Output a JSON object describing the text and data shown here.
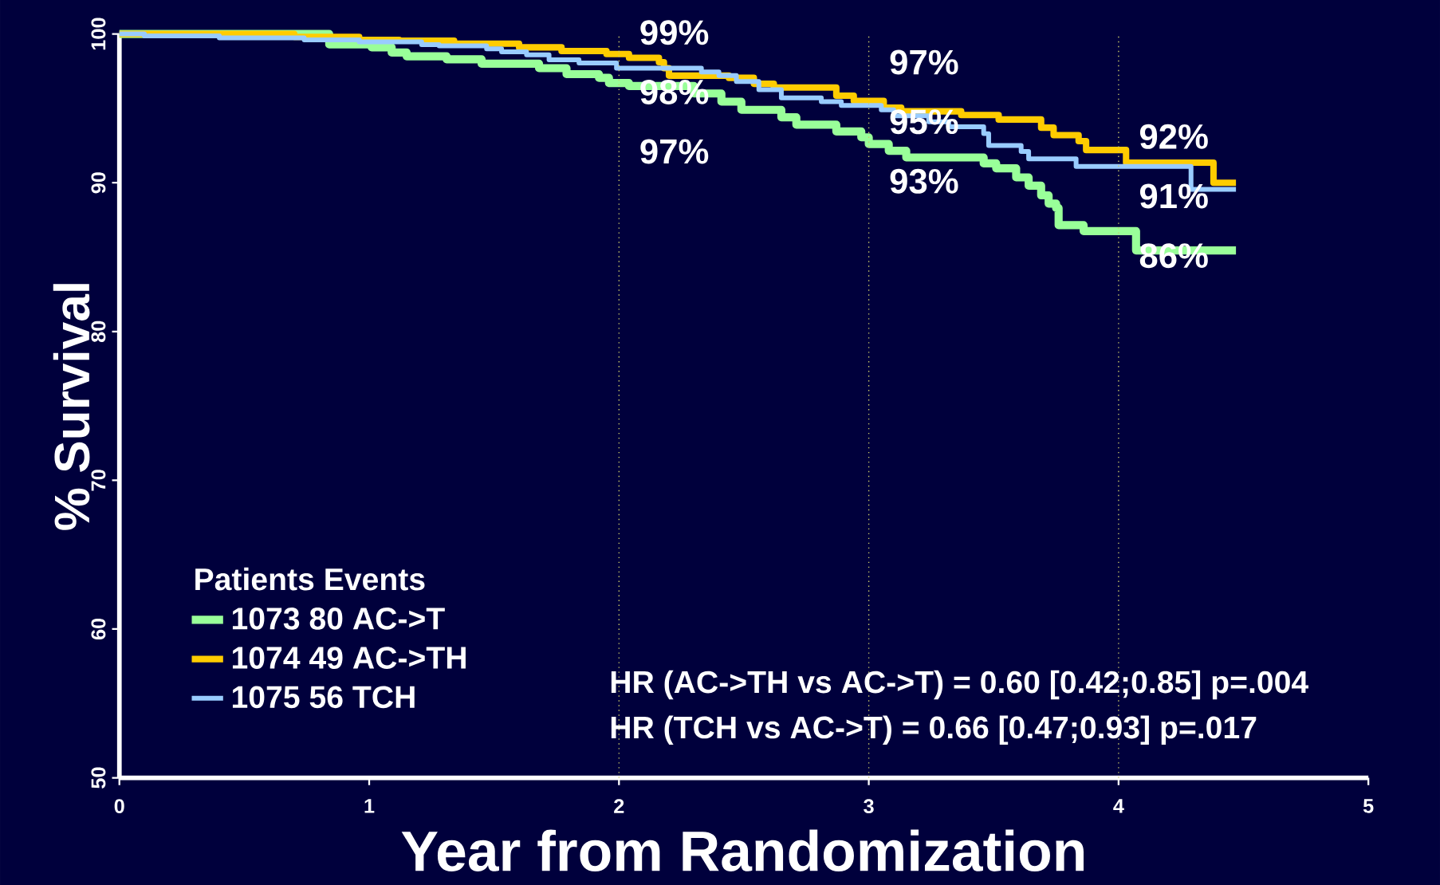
{
  "chart_data": {
    "type": "step",
    "xlabel": "Year from Randomization",
    "ylabel": "% Survival",
    "legend_title": "Patients Events",
    "legend": "bottom left",
    "xlim": [
      0,
      5
    ],
    "ylim": [
      50,
      100
    ],
    "xticks": [
      0,
      1,
      2,
      3,
      4,
      5
    ],
    "yticks": [
      50,
      60,
      70,
      80,
      90,
      100
    ],
    "series": [
      {
        "name": "1073 80 AC->T",
        "color": "#99ff99",
        "x": [
          0,
          0.84,
          1.01,
          1.09,
          1.15,
          1.31,
          1.45,
          1.68,
          1.79,
          1.92,
          1.96,
          2.04,
          2.3,
          2.41,
          2.49,
          2.65,
          2.71,
          2.87,
          2.97,
          3.0,
          3.08,
          3.15,
          3.46,
          3.51,
          3.59,
          3.64,
          3.69,
          3.72,
          3.75,
          3.76,
          3.86,
          4.07,
          4.47
        ],
        "values": [
          100,
          99.3,
          99.1,
          98.75,
          98.5,
          98.3,
          98.0,
          97.7,
          97.3,
          97.05,
          96.7,
          96.5,
          96.0,
          95.45,
          94.9,
          94.4,
          93.9,
          93.45,
          93.05,
          92.6,
          92.15,
          91.7,
          91.3,
          90.97,
          90.36,
          89.8,
          89.15,
          88.6,
          88.3,
          87.15,
          86.75,
          85.45,
          85.45
        ]
      },
      {
        "name": "1074 49 AC->TH",
        "color": "#ffcc00",
        "x": [
          0,
          0.7,
          0.96,
          1.12,
          1.34,
          1.6,
          1.77,
          1.95,
          2.04,
          2.16,
          2.18,
          2.2,
          2.44,
          2.54,
          2.62,
          2.87,
          2.94,
          3.06,
          3.13,
          3.37,
          3.52,
          3.69,
          3.74,
          3.84,
          3.87,
          4.03,
          4.38,
          4.47
        ],
        "values": [
          100,
          99.8,
          99.6,
          99.55,
          99.35,
          99.1,
          98.85,
          98.65,
          98.4,
          98.1,
          97.7,
          97.2,
          97.05,
          96.65,
          96.4,
          95.85,
          95.5,
          95.05,
          94.8,
          94.55,
          94.25,
          93.7,
          93.2,
          92.8,
          92.2,
          91.35,
          90.0,
          90.0
        ]
      },
      {
        "name": "1075 56 TCH",
        "color": "#99ccff",
        "x": [
          0,
          0.1,
          0.4,
          0.74,
          0.96,
          1.21,
          1.28,
          1.47,
          1.53,
          1.63,
          1.72,
          1.84,
          1.99,
          2.33,
          2.4,
          2.47,
          2.56,
          2.65,
          2.81,
          2.89,
          3.05,
          3.1,
          3.24,
          3.32,
          3.46,
          3.48,
          3.61,
          3.64,
          3.83,
          4.29,
          4.47
        ],
        "values": [
          100,
          99.87,
          99.74,
          99.6,
          99.47,
          99.28,
          99.2,
          99.0,
          98.8,
          98.6,
          98.26,
          98.05,
          97.7,
          97.45,
          97.2,
          96.8,
          96.25,
          95.7,
          95.45,
          95.2,
          94.9,
          94.5,
          94.1,
          93.76,
          93.3,
          92.5,
          92.1,
          91.6,
          91.1,
          89.55,
          89.55
        ]
      }
    ],
    "ref_lines": [
      {
        "axis": "x",
        "value": 2,
        "color": "#cccc66",
        "line_style": "dotted"
      },
      {
        "axis": "x",
        "value": 3,
        "color": "#cccc66",
        "line_style": "dotted"
      },
      {
        "axis": "x",
        "value": 4,
        "color": "#cccc66",
        "line_style": "dotted"
      }
    ],
    "annotations": [
      {
        "text": "99%",
        "x": 2,
        "y": 99
      },
      {
        "text": "98%",
        "x": 2,
        "y": 98
      },
      {
        "text": "97%",
        "x": 2,
        "y": 97
      },
      {
        "text": "97%",
        "x": 3,
        "y": 97
      },
      {
        "text": "95%",
        "x": 3,
        "y": 95
      },
      {
        "text": "93%",
        "x": 3,
        "y": 93
      },
      {
        "text": "92%",
        "x": 4,
        "y": 92
      },
      {
        "text": "91%",
        "x": 4,
        "y": 91
      },
      {
        "text": "86%",
        "x": 4,
        "y": 86
      },
      "HR (AC->TH vs AC->T) = 0.60 [0.42;0.85]  p=.004",
      "HR (TCH vs AC->T) = 0.66 [0.47;0.93]  p=.017"
    ]
  }
}
